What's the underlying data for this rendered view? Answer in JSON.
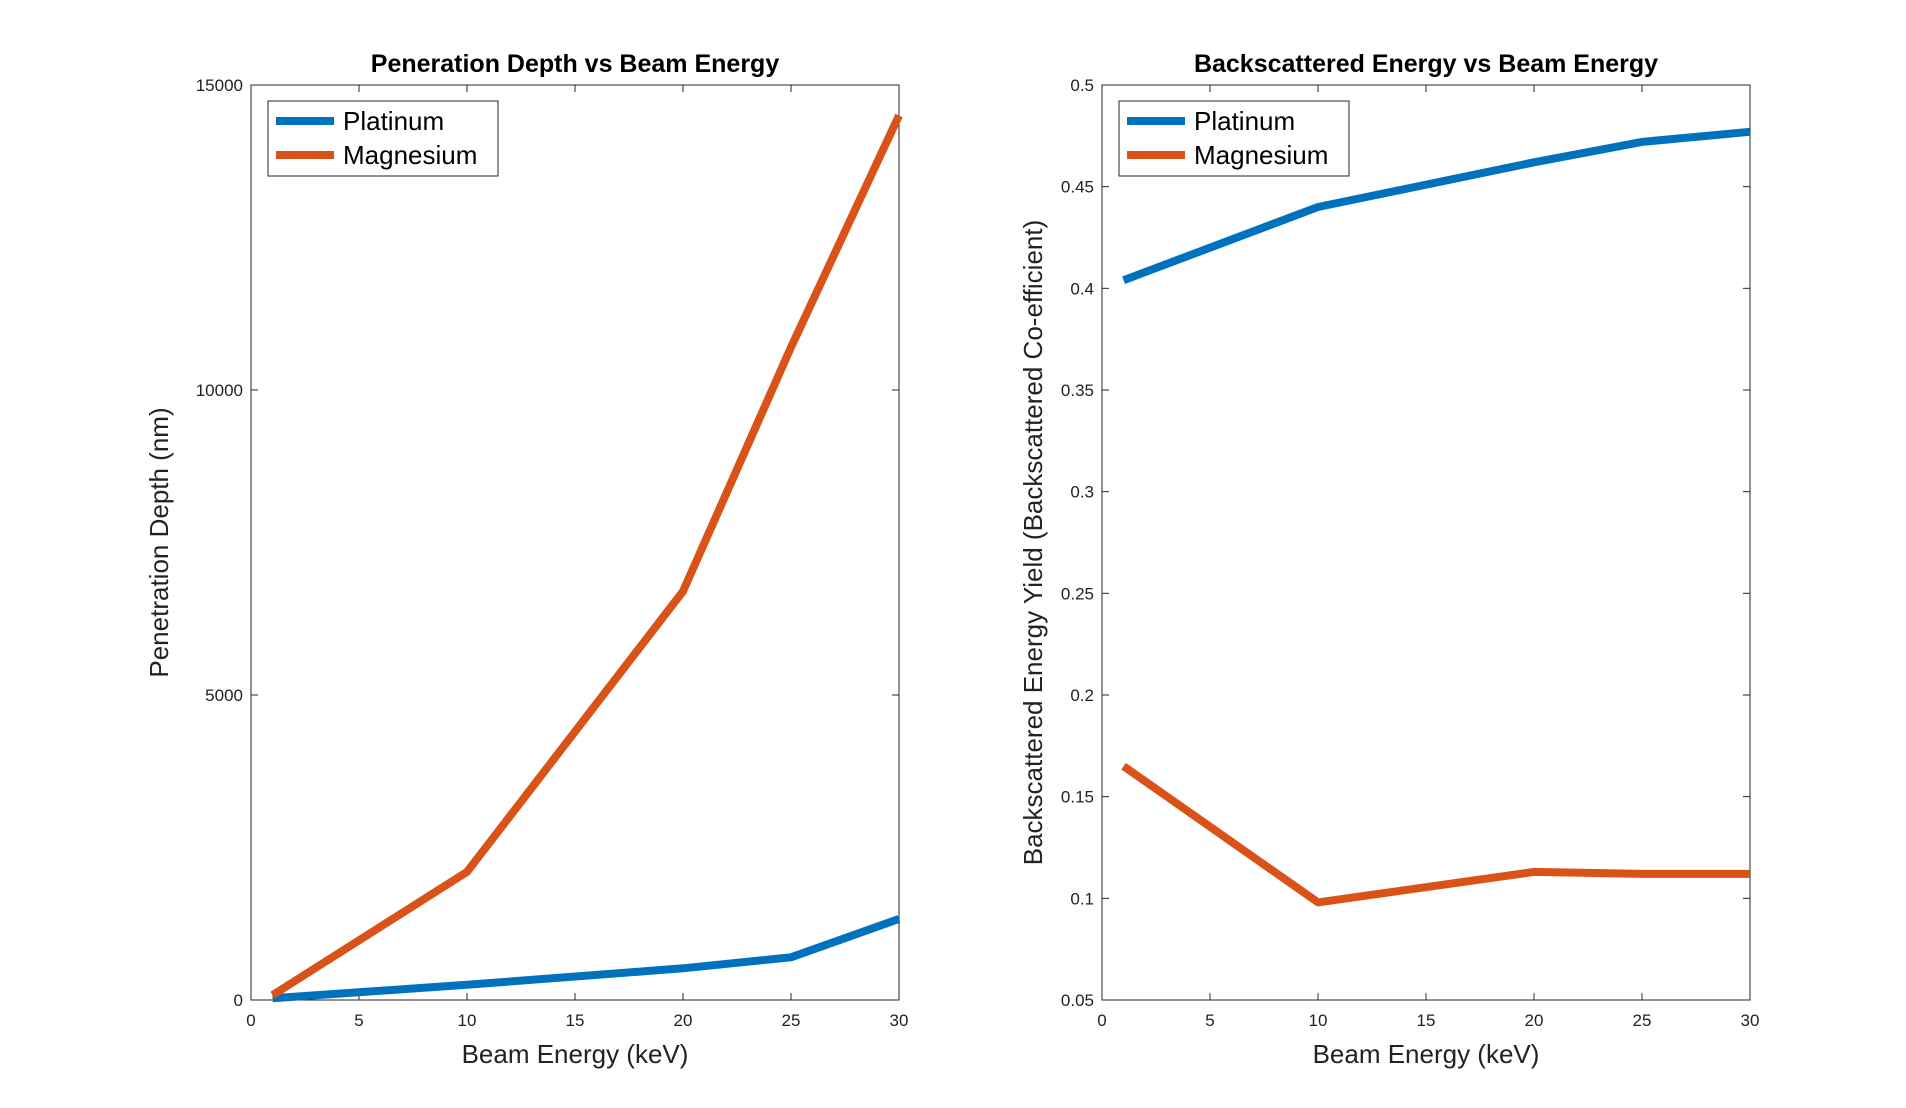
{
  "chart_data": [
    {
      "type": "line",
      "title": "Peneration Depth vs Beam Energy",
      "xlabel": "Beam Energy (keV)",
      "ylabel": "Penetration Depth (nm)",
      "xlim": [
        0,
        30
      ],
      "ylim": [
        0,
        15000
      ],
      "xticks": [
        0,
        5,
        10,
        15,
        20,
        25,
        30
      ],
      "yticks": [
        0,
        5000,
        10000,
        15000
      ],
      "xtick_labels": [
        "0",
        "5",
        "10",
        "15",
        "20",
        "25",
        "30"
      ],
      "ytick_labels": [
        "0",
        "5000",
        "10000",
        "15000"
      ],
      "legend_position": "top-left",
      "x": [
        1,
        10,
        20,
        25,
        30
      ],
      "series": [
        {
          "name": "Platinum",
          "color": "#0072BD",
          "values": [
            30,
            250,
            520,
            700,
            1330
          ]
        },
        {
          "name": "Magnesium",
          "color": "#D95319",
          "values": [
            80,
            2100,
            6700,
            10700,
            14500
          ]
        }
      ]
    },
    {
      "type": "line",
      "title": "Backscattered Energy vs Beam Energy",
      "xlabel": "Beam Energy (keV)",
      "ylabel": "Backscattered Energy Yield (Backscattered Co-efficient)",
      "xlim": [
        0,
        30
      ],
      "ylim": [
        0.05,
        0.5
      ],
      "xticks": [
        0,
        5,
        10,
        15,
        20,
        25,
        30
      ],
      "yticks": [
        0.05,
        0.1,
        0.15,
        0.2,
        0.25,
        0.3,
        0.35,
        0.4,
        0.45,
        0.5
      ],
      "xtick_labels": [
        "0",
        "5",
        "10",
        "15",
        "20",
        "25",
        "30"
      ],
      "ytick_labels": [
        "0.05",
        "0.1",
        "0.15",
        "0.2",
        "0.25",
        "0.3",
        "0.35",
        "0.4",
        "0.45",
        "0.5"
      ],
      "legend_position": "top-left",
      "x": [
        1,
        10,
        20,
        25,
        30
      ],
      "series": [
        {
          "name": "Platinum",
          "color": "#0072BD",
          "values": [
            0.404,
            0.44,
            0.462,
            0.472,
            0.477
          ]
        },
        {
          "name": "Magnesium",
          "color": "#D95319",
          "values": [
            0.165,
            0.098,
            0.113,
            0.112,
            0.112
          ]
        }
      ]
    }
  ]
}
